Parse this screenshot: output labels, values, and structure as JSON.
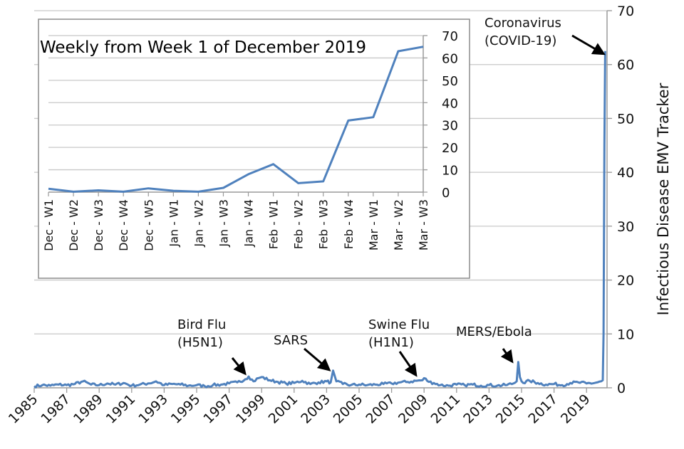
{
  "chart_data": [
    {
      "id": "main",
      "type": "line",
      "title": "",
      "xlabel": "",
      "ylabel": "Infectious Disease EMV Tracker",
      "y_axis_side": "right",
      "xlim": [
        1985,
        2020.3
      ],
      "ylim": [
        0,
        70
      ],
      "yticks": [
        0,
        10,
        20,
        30,
        40,
        50,
        60,
        70
      ],
      "xtick_labels": [
        "1985",
        "1987",
        "1989",
        "1991",
        "1993",
        "1995",
        "1997",
        "1999",
        "2001",
        "2003",
        "2005",
        "2007",
        "2009",
        "2011",
        "2013",
        "2015",
        "2017",
        "2019"
      ],
      "grid": true,
      "color": "#4f81bd",
      "series": [
        {
          "name": "Infectious Disease EMV Tracker",
          "x": [
            1985.0,
            1985.5,
            1986.0,
            1986.5,
            1987.0,
            1987.5,
            1988.0,
            1988.5,
            1989.0,
            1989.5,
            1990.0,
            1990.5,
            1991.0,
            1991.5,
            1992.0,
            1992.5,
            1993.0,
            1993.5,
            1994.0,
            1994.5,
            1995.0,
            1995.5,
            1996.0,
            1996.5,
            1997.0,
            1997.5,
            1998.0,
            1998.2,
            1998.5,
            1998.8,
            1999.0,
            1999.5,
            2000.0,
            2000.5,
            2001.0,
            2001.5,
            2002.0,
            2002.5,
            2003.0,
            2003.25,
            2003.4,
            2003.6,
            2004.0,
            2004.5,
            2005.0,
            2005.5,
            2006.0,
            2006.5,
            2007.0,
            2007.5,
            2008.0,
            2008.5,
            2008.9,
            2009.0,
            2009.3,
            2009.6,
            2010.0,
            2010.5,
            2011.0,
            2011.5,
            2012.0,
            2012.5,
            2013.0,
            2013.5,
            2014.0,
            2014.5,
            2014.7,
            2014.8,
            2014.9,
            2015.1,
            2015.5,
            2016.0,
            2016.5,
            2017.0,
            2017.5,
            2018.0,
            2018.5,
            2019.0,
            2019.5,
            2019.9,
            2020.0,
            2020.05,
            2020.1,
            2020.15
          ],
          "y": [
            0.3,
            0.5,
            0.4,
            0.6,
            0.5,
            0.7,
            1.2,
            0.6,
            0.5,
            0.8,
            0.6,
            0.9,
            0.4,
            0.6,
            0.8,
            1.2,
            0.5,
            0.7,
            0.6,
            0.4,
            0.5,
            0.3,
            0.5,
            0.6,
            0.8,
            1.0,
            1.6,
            2.1,
            1.2,
            1.8,
            2.0,
            1.4,
            1.1,
            0.8,
            0.9,
            1.3,
            0.7,
            1.0,
            1.2,
            1.0,
            3.2,
            1.2,
            0.7,
            0.5,
            0.6,
            0.5,
            0.6,
            0.7,
            0.8,
            1.0,
            1.1,
            1.3,
            1.4,
            1.8,
            1.1,
            0.9,
            0.5,
            0.4,
            0.6,
            0.5,
            0.6,
            0.4,
            0.5,
            0.4,
            0.5,
            0.8,
            1.2,
            4.8,
            2.0,
            0.9,
            1.3,
            0.9,
            0.6,
            0.7,
            0.5,
            0.9,
            1.0,
            0.8,
            0.9,
            1.2,
            1.4,
            10.0,
            45.0,
            62.5
          ]
        }
      ],
      "annotations": [
        {
          "text_lines": [
            "Bird Flu",
            "(H5N1)"
          ],
          "x": 1998.2,
          "y": 2.1
        },
        {
          "text_lines": [
            "SARS"
          ],
          "x": 2003.4,
          "y": 3.2
        },
        {
          "text_lines": [
            "Swine Flu",
            "(H1N1)"
          ],
          "x": 2009.0,
          "y": 1.8
        },
        {
          "text_lines": [
            "MERS/Ebola"
          ],
          "x": 2014.8,
          "y": 4.8
        },
        {
          "text_lines": [
            "Coronavirus",
            "(COVID-19)"
          ],
          "x": 2020.15,
          "y": 62.5
        }
      ]
    },
    {
      "id": "inset",
      "type": "line",
      "title": "Weekly from Week 1 of December 2019",
      "xlabel": "",
      "ylabel": "",
      "y_axis_side": "right",
      "ylim": [
        0,
        70
      ],
      "yticks": [
        0,
        10,
        20,
        30,
        40,
        50,
        60,
        70
      ],
      "grid": true,
      "color": "#4f81bd",
      "categories": [
        "Dec - W1",
        "Dec - W2",
        "Dec - W3",
        "Dec - W4",
        "Dec - W5",
        "Jan - W1",
        "Jan - W2",
        "Jan - W3",
        "Jan - W4",
        "Feb - W1",
        "Feb - W2",
        "Feb - W3",
        "Feb - W4",
        "Mar - W1",
        "Mar - W2",
        "Mar - W3"
      ],
      "values": [
        1.5,
        0.2,
        0.8,
        0.2,
        1.7,
        0.6,
        0.2,
        1.9,
        8.0,
        12.5,
        4.0,
        4.8,
        32.0,
        33.5,
        63.0,
        65.0
      ]
    }
  ]
}
